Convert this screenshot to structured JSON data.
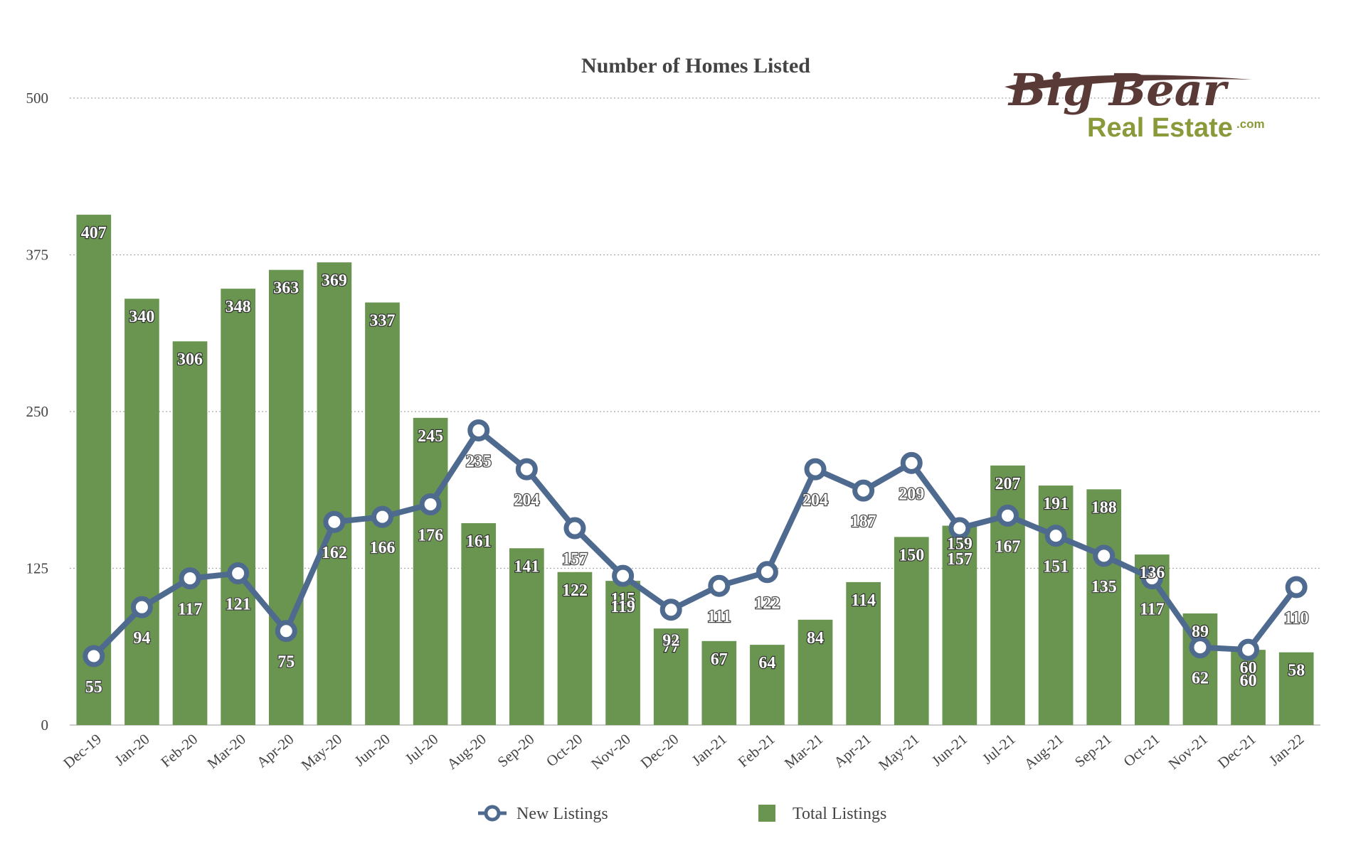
{
  "logo": {
    "top_text": "Big Bear",
    "bottom_text": "Real Estate",
    "suffix_text": ".com",
    "top_color": "#5a3a36",
    "bottom_color": "#8a9a3a"
  },
  "chart_data": {
    "type": "bar",
    "title": "Number of Homes Listed",
    "xlabel": "",
    "ylabel": "",
    "ylim": [
      0,
      500
    ],
    "yticks": [
      0,
      125,
      250,
      375,
      500
    ],
    "grid": true,
    "legend_position": "bottom",
    "categories": [
      "Dec-19",
      "Jan-20",
      "Feb-20",
      "Mar-20",
      "Apr-20",
      "May-20",
      "Jun-20",
      "Jul-20",
      "Aug-20",
      "Sep-20",
      "Oct-20",
      "Nov-20",
      "Dec-20",
      "Jan-21",
      "Feb-21",
      "Mar-21",
      "Apr-21",
      "May-21",
      "Jun-21",
      "Jul-21",
      "Aug-21",
      "Sep-21",
      "Oct-21",
      "Nov-21",
      "Dec-21",
      "Jan-22"
    ],
    "series": [
      {
        "name": "Total Listings",
        "type": "bar",
        "color": "#6a9550",
        "values": [
          407,
          340,
          306,
          348,
          363,
          369,
          337,
          245,
          161,
          141,
          122,
          115,
          77,
          67,
          64,
          84,
          114,
          150,
          159,
          207,
          191,
          188,
          136,
          89,
          60,
          58
        ]
      },
      {
        "name": "New Listings",
        "type": "line",
        "color": "#4f6a8f",
        "values": [
          55,
          94,
          117,
          121,
          75,
          162,
          166,
          176,
          235,
          204,
          157,
          119,
          92,
          111,
          122,
          204,
          187,
          209,
          157,
          167,
          151,
          135,
          117,
          62,
          60,
          110
        ]
      }
    ]
  }
}
